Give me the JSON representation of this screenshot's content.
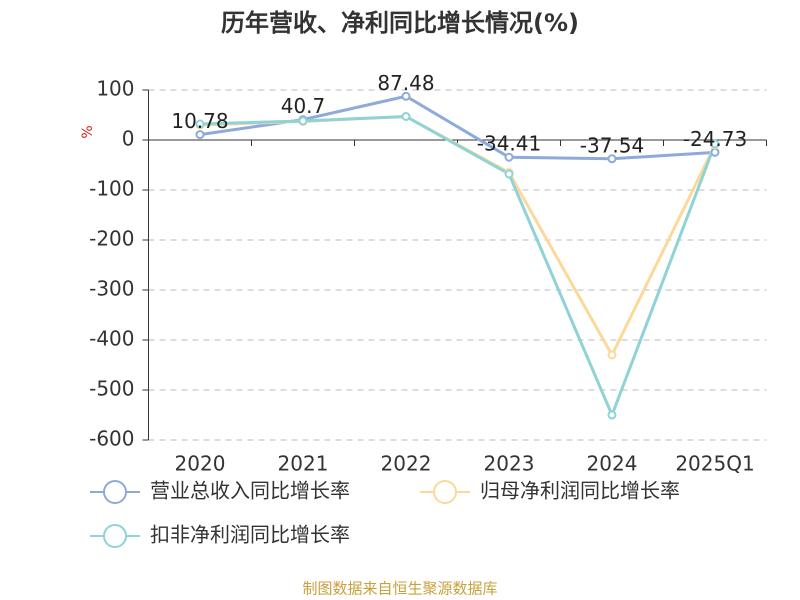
{
  "chart_data": {
    "type": "line",
    "title": "历年营收、净利同比增长情况(%)",
    "y_label": "%",
    "categories": [
      "2020",
      "2021",
      "2022",
      "2023",
      "2024",
      "2025Q1"
    ],
    "series": [
      {
        "name": "营业总收入同比增长率",
        "color": "#8eaadb",
        "values": [
          10.78,
          40.7,
          87.48,
          -34.41,
          -37.54,
          -24.73
        ],
        "show_labels": true
      },
      {
        "name": "归母净利润同比增长率",
        "color": "#fcd99a",
        "values": [
          30,
          37,
          47,
          -65,
          -430,
          -10
        ],
        "show_labels": false
      },
      {
        "name": "扣非净利润同比增长率",
        "color": "#8fd3d6",
        "values": [
          32,
          38,
          47,
          -68,
          -550,
          -8
        ],
        "show_labels": false
      }
    ],
    "ylim": [
      -600,
      100
    ],
    "yticks": [
      -600,
      -500,
      -400,
      -300,
      -200,
      -100,
      0,
      100
    ],
    "grid": true,
    "source": "制图数据来自恒生聚源数据库"
  }
}
